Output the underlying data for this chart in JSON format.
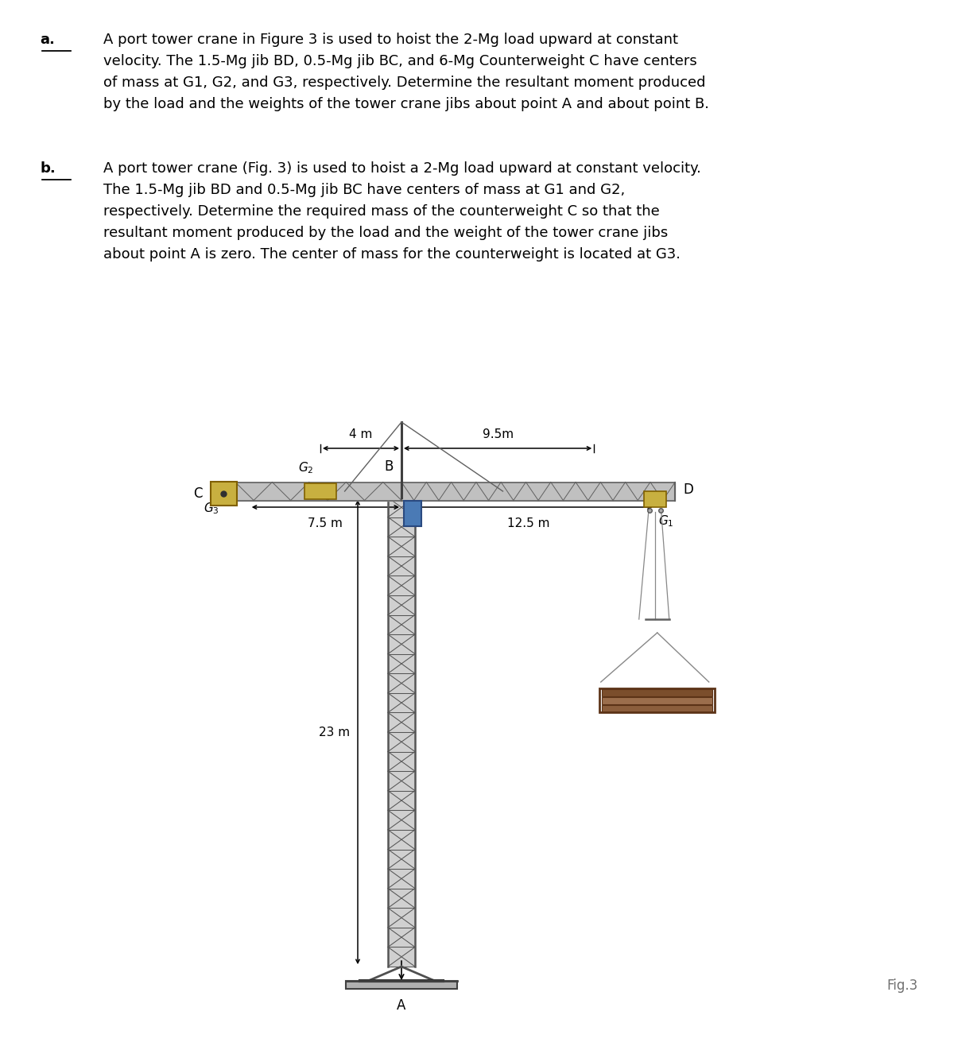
{
  "text_a_label": "a.",
  "text_a_content": "A port tower crane in Figure 3 is used to hoist the 2-Mg load upward at constant\nvelocity. The 1.5-Mg jib BD, 0.5-Mg jib BC, and 6-Mg Counterweight C have centers\nof mass at G1, G2, and G3, respectively. Determine the resultant moment produced\nby the load and the weights of the tower crane jibs about point A and about point B.",
  "text_b_label": "b.",
  "text_b_content": "A port tower crane (Fig. 3) is used to hoist a 2-Mg load upward at constant velocity.\nThe 1.5-Mg jib BD and 0.5-Mg jib BC have centers of mass at G1 and G2,\nrespectively. Determine the required mass of the counterweight C so that the\nresultant moment produced by the load and the weight of the tower crane jibs\nabout point A is zero. The center of mass for the counterweight is located at G3.",
  "fig_label": "Fig.3",
  "dim_4m": "4 m",
  "dim_9_5m": "9.5m",
  "dim_7_5m": "7.5 m",
  "dim_12_5m": "12.5 m",
  "dim_23m": "23 m",
  "label_G1": "$G_1$",
  "label_G2": "$G_2$",
  "label_G3": "$G_3$",
  "label_B": "B",
  "label_C": "C",
  "label_D": "D",
  "label_A": "A",
  "bg_color": "#ffffff",
  "text_color": "#000000",
  "tower_truss_color": "#555555",
  "tower_fill": "#d0d0d0",
  "jib_fill": "#c0c0c0",
  "jib_edge": "#606060",
  "counterweight_fill": "#c8b040",
  "counterweight_edge": "#806000",
  "load_fill": "#8B5E3C",
  "load_edge": "#5C3317",
  "hoist_fill": "#4a7ab5",
  "hoist_edge": "#2a4a80",
  "rope_color": "#888888",
  "ground_fill": "#b0b0b0",
  "mast_color": "#404040"
}
